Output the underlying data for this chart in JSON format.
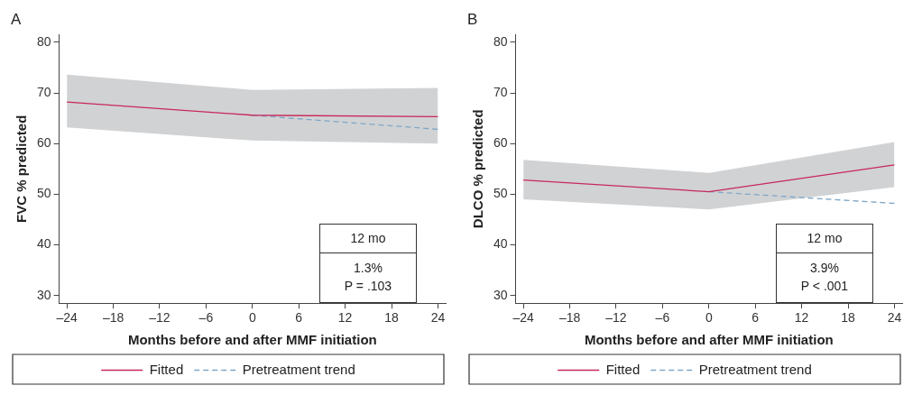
{
  "chart_data": [
    {
      "type": "line",
      "title": "A",
      "xlabel": "Months before and after MMF initiation",
      "ylabel": "FVC % predicted",
      "xlim": [
        -25,
        25
      ],
      "ylim": [
        28.5,
        81.5
      ],
      "xticks": [
        {
          "value": -24,
          "label": "–24"
        },
        {
          "value": -18,
          "label": "–18"
        },
        {
          "value": -12,
          "label": "–12"
        },
        {
          "value": -6,
          "label": "–6"
        },
        0,
        6,
        12,
        18,
        24
      ],
      "yticks": [
        30,
        40,
        50,
        60,
        70,
        80
      ],
      "grid": false,
      "legend": "bottom",
      "marker": "none",
      "series": [
        {
          "name": "Fitted",
          "color": "#c8285a",
          "x": [
            -24,
            0,
            24
          ],
          "values": [
            68.2,
            65.6,
            65.3
          ],
          "lower": [
            63.2,
            60.6,
            60.0
          ],
          "upper": [
            73.6,
            70.6,
            71.0
          ],
          "line_style": "solid"
        },
        {
          "name": "Pretreatment trend",
          "color": "#7fa7c8",
          "x": [
            0,
            24
          ],
          "values": [
            65.6,
            62.8
          ],
          "line_style": "dashed"
        }
      ],
      "annotations": [
        "12 mo",
        "1.3%",
        "P = .103"
      ]
    },
    {
      "type": "line",
      "title": "B",
      "xlabel": "Months before and after MMF initiation",
      "ylabel": "DLCO % predicted",
      "xlim": [
        -25,
        25
      ],
      "ylim": [
        28.5,
        81.5
      ],
      "xticks": [
        {
          "value": -24,
          "label": "–24"
        },
        {
          "value": -18,
          "label": "–18"
        },
        {
          "value": -12,
          "label": "–12"
        },
        {
          "value": -6,
          "label": "–6"
        },
        0,
        6,
        12,
        18,
        24
      ],
      "yticks": [
        30,
        40,
        50,
        60,
        70,
        80
      ],
      "grid": false,
      "legend": "bottom",
      "marker": "none",
      "series": [
        {
          "name": "Fitted",
          "color": "#c8285a",
          "x": [
            -24,
            0,
            24
          ],
          "values": [
            52.8,
            50.5,
            55.8
          ],
          "lower": [
            49.0,
            47.0,
            51.4
          ],
          "upper": [
            56.8,
            54.2,
            60.3
          ],
          "line_style": "solid"
        },
        {
          "name": "Pretreatment trend",
          "color": "#7fa7c8",
          "x": [
            0,
            24
          ],
          "values": [
            50.5,
            48.2
          ],
          "line_style": "dashed"
        }
      ],
      "annotations": [
        "12 mo",
        "3.9%",
        "P < .001"
      ]
    }
  ]
}
